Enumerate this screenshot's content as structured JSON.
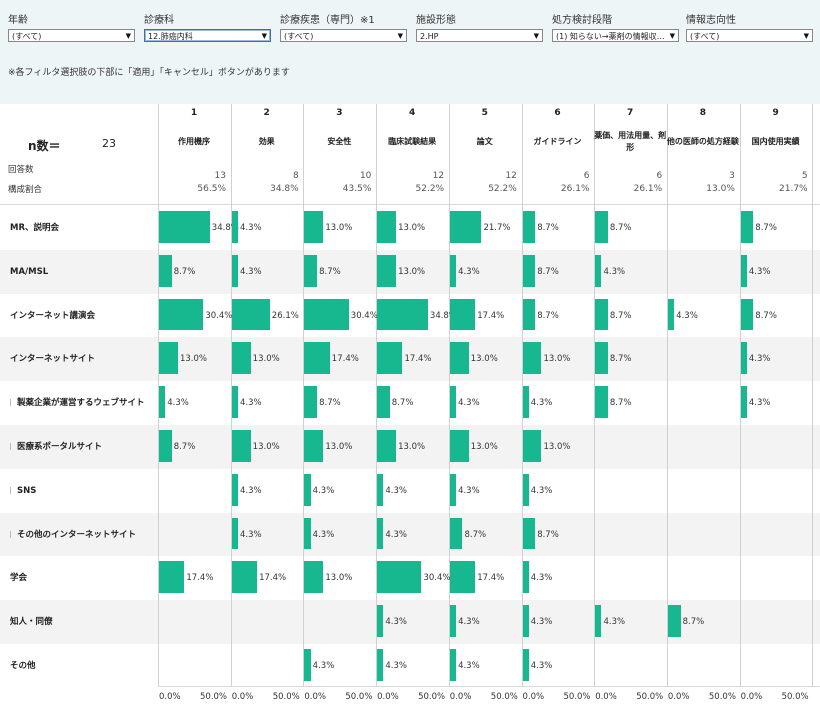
{
  "filters": [
    {
      "label": "年齢",
      "value": "(すべて)",
      "active": false
    },
    {
      "label": "診療科",
      "value": "12.肺癌内科",
      "active": true
    },
    {
      "label": "診療疾患（専門）※1",
      "value": "(すべて)",
      "active": false
    },
    {
      "label": "施設形態",
      "value": "2.HP",
      "active": false
    },
    {
      "label": "処方検討段階",
      "value": "(1) 知らない→薬剤の情報収…",
      "active": false
    },
    {
      "label": "情報志向性",
      "value": "(すべて)",
      "active": false
    }
  ],
  "filter_note": "※各フィルタ選択肢の下部に「適用」「キャンセル」ボタンがあります",
  "n_label": "n数＝",
  "n_value": "23",
  "count_row_label": "回答数",
  "ratio_row_label": "構成割合",
  "colors": {
    "bar": "#17b890",
    "filter_bg": "#eef5f6",
    "band": "#f3f3f3"
  },
  "chart_data": {
    "type": "bar",
    "orientation": "horizontal-small-multiples",
    "xlim": [
      0,
      50
    ],
    "axis_ticks": [
      "0.0%",
      "50.0%"
    ],
    "columns": [
      {
        "num": "1",
        "name": "作用機序",
        "count": "13",
        "ratio": "56.5%"
      },
      {
        "num": "2",
        "name": "効果",
        "count": "8",
        "ratio": "34.8%"
      },
      {
        "num": "3",
        "name": "安全性",
        "count": "10",
        "ratio": "43.5%"
      },
      {
        "num": "4",
        "name": "臨床試験結果",
        "count": "12",
        "ratio": "52.2%"
      },
      {
        "num": "5",
        "name": "論文",
        "count": "12",
        "ratio": "52.2%"
      },
      {
        "num": "6",
        "name": "ガイドライン",
        "count": "6",
        "ratio": "26.1%"
      },
      {
        "num": "7",
        "name": "薬価、用法用量、剤形",
        "count": "6",
        "ratio": "26.1%"
      },
      {
        "num": "8",
        "name": "他の医師の処方経験",
        "count": "3",
        "ratio": "13.0%"
      },
      {
        "num": "9",
        "name": "国内使用実績",
        "count": "5",
        "ratio": "21.7%"
      }
    ],
    "rows": [
      {
        "name": "MR、説明会",
        "tick": false,
        "values": [
          34.8,
          4.3,
          13.0,
          13.0,
          21.7,
          8.7,
          8.7,
          null,
          8.7
        ]
      },
      {
        "name": "MA/MSL",
        "tick": false,
        "values": [
          8.7,
          4.3,
          8.7,
          13.0,
          4.3,
          8.7,
          4.3,
          null,
          4.3
        ]
      },
      {
        "name": "インターネット講演会",
        "tick": false,
        "values": [
          30.4,
          26.1,
          30.4,
          34.8,
          17.4,
          8.7,
          8.7,
          4.3,
          8.7
        ]
      },
      {
        "name": "インターネットサイト",
        "tick": false,
        "values": [
          13.0,
          13.0,
          17.4,
          17.4,
          13.0,
          13.0,
          8.7,
          null,
          4.3
        ]
      },
      {
        "name": "製薬企業が運営するウェブサイト",
        "tick": true,
        "values": [
          4.3,
          4.3,
          8.7,
          8.7,
          4.3,
          4.3,
          8.7,
          null,
          4.3
        ]
      },
      {
        "name": "医療系ポータルサイト",
        "tick": true,
        "values": [
          8.7,
          13.0,
          13.0,
          13.0,
          13.0,
          13.0,
          null,
          null,
          null
        ]
      },
      {
        "name": "SNS",
        "tick": true,
        "values": [
          null,
          4.3,
          4.3,
          4.3,
          4.3,
          4.3,
          null,
          null,
          null
        ]
      },
      {
        "name": "その他のインターネットサイト",
        "tick": true,
        "values": [
          null,
          4.3,
          4.3,
          4.3,
          8.7,
          8.7,
          null,
          null,
          null
        ]
      },
      {
        "name": "学会",
        "tick": false,
        "values": [
          17.4,
          17.4,
          13.0,
          30.4,
          17.4,
          4.3,
          null,
          null,
          null
        ]
      },
      {
        "name": "知人・同僚",
        "tick": false,
        "values": [
          null,
          null,
          null,
          4.3,
          4.3,
          4.3,
          4.3,
          8.7,
          null
        ]
      },
      {
        "name": "その他",
        "tick": false,
        "values": [
          null,
          null,
          4.3,
          4.3,
          4.3,
          4.3,
          null,
          null,
          null
        ]
      }
    ]
  }
}
